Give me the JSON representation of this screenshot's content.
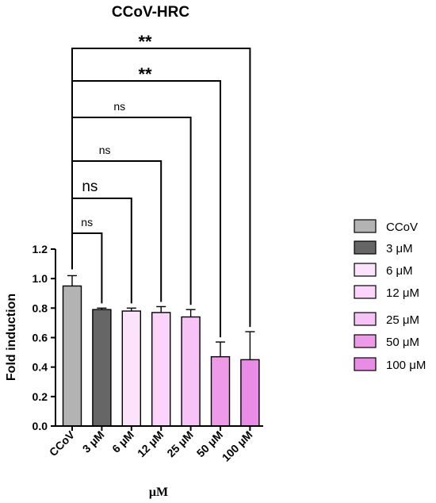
{
  "chart_data": {
    "type": "bar",
    "title": "CCoV-HRC",
    "xlabel": "μM",
    "ylabel": "Fold induction",
    "ylim": [
      0,
      1.2
    ],
    "yticks": [
      "0.0",
      "0.2",
      "0.4",
      "0.6",
      "0.8",
      "1.0",
      "1.2"
    ],
    "categories": [
      "CCoV",
      "3 μM",
      "6 μM",
      "12 μM",
      "25 μM",
      "50 μM",
      "100 μM"
    ],
    "values": [
      0.95,
      0.79,
      0.78,
      0.77,
      0.74,
      0.47,
      0.45
    ],
    "errors": [
      0.07,
      0.01,
      0.02,
      0.04,
      0.05,
      0.1,
      0.19
    ],
    "colors": [
      "#b3b3b3",
      "#666666",
      "#fbe3fb",
      "#fbd3fb",
      "#f7c2f5",
      "#ee9ae9",
      "#e98ce6"
    ],
    "significance": [
      {
        "target": "3 μM",
        "label": "ns"
      },
      {
        "target": "6 μM",
        "label": "ns"
      },
      {
        "target": "12 μM",
        "label": "ns"
      },
      {
        "target": "25 μM",
        "label": "ns"
      },
      {
        "target": "50 μM",
        "label": "**"
      },
      {
        "target": "100 μM",
        "label": "**"
      }
    ],
    "legend": [
      "CCoV",
      "3 μM",
      "6 μM",
      "12 μM",
      "25 μM",
      "50 μM",
      "100 μM"
    ],
    "legend_position": "right"
  }
}
